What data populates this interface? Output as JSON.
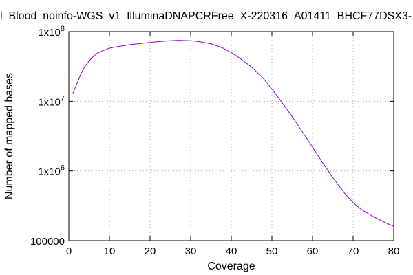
{
  "chart_data": {
    "type": "line",
    "title": "l_Blood_noinfo-WGS_v1_IlluminaDNAPCRFree_X-220316_A01411_BHCF77DSX3-",
    "xlabel": "Coverage",
    "ylabel": "Number of mapped bases",
    "xlim": [
      0,
      80
    ],
    "ylim": [
      100000,
      100000000
    ],
    "yscale": "log",
    "grid": true,
    "legend": "none",
    "line_color": "#9400d3",
    "x_ticks": [
      {
        "value": 0,
        "label": "0"
      },
      {
        "value": 10,
        "label": "10"
      },
      {
        "value": 20,
        "label": "20"
      },
      {
        "value": 30,
        "label": "30"
      },
      {
        "value": 40,
        "label": "40"
      },
      {
        "value": 50,
        "label": "50"
      },
      {
        "value": 60,
        "label": "60"
      },
      {
        "value": 70,
        "label": "70"
      },
      {
        "value": 80,
        "label": "80"
      }
    ],
    "y_ticks": [
      {
        "value": 100000,
        "base": "100000",
        "exp": ""
      },
      {
        "value": 1000000,
        "base": "1x10",
        "exp": "6"
      },
      {
        "value": 10000000,
        "base": "1x10",
        "exp": "7"
      },
      {
        "value": 100000000,
        "base": "1x10",
        "exp": "8"
      }
    ],
    "series": [
      {
        "x": [
          1,
          2,
          3,
          4,
          5,
          6,
          7,
          8,
          10,
          12,
          15,
          18,
          20,
          22,
          25,
          27,
          30,
          32,
          35,
          38,
          40,
          42,
          45,
          48,
          50,
          52,
          55,
          58,
          60,
          62,
          65,
          68,
          70,
          72,
          75,
          78,
          80
        ],
        "y": [
          13000000,
          18000000,
          25000000,
          32000000,
          38000000,
          44000000,
          49000000,
          52000000,
          58000000,
          61000000,
          65000000,
          68000000,
          70000000,
          72000000,
          74000000,
          75000000,
          74000000,
          72000000,
          67000000,
          58000000,
          50000000,
          42000000,
          31000000,
          21000000,
          15000000,
          10500000,
          6000000,
          3300000,
          2200000,
          1450000,
          800000,
          470000,
          350000,
          280000,
          220000,
          180000,
          160000
        ]
      }
    ]
  }
}
